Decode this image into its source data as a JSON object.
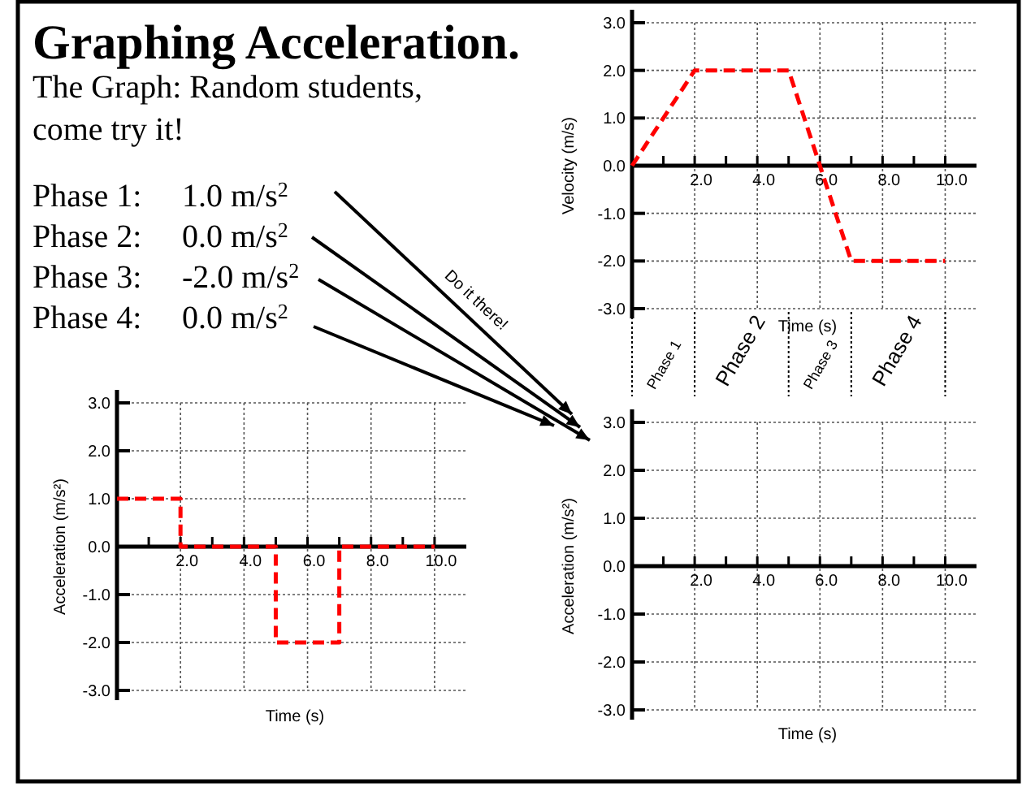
{
  "chart_data": [
    {
      "type": "other",
      "title": "Graphing Acceleration.",
      "subtitle": "The Graph: Random students, come try it!",
      "annotations": [
        "Phase 1: 1.0 m/s$^{2}$",
        "Phase 2: 0.0 m/s$^{2}$",
        "Phase 3: -2.0 m/s$^{2}$",
        "Phase 4: 0.0 m/s$^{2}$",
        "Do it there!"
      ]
    },
    {
      "type": "line",
      "ylabel": "Velocity (m/s)",
      "xlabel": "Time (s)",
      "annotations": [
        "Phase 1",
        "Phase 2",
        "Phase 3",
        "Phase 4"
      ],
      "xlim": [
        0,
        11
      ],
      "ylim": [
        -3,
        3
      ],
      "xticks": [
        {
          "value": 1,
          "label": null
        },
        {
          "value": 2,
          "label": "2.0"
        },
        {
          "value": 3,
          "label": null
        },
        {
          "value": 4,
          "label": "4.0"
        },
        {
          "value": 5,
          "label": null
        },
        {
          "value": 6,
          "label": "6.0"
        },
        {
          "value": 7,
          "label": null
        },
        {
          "value": 8,
          "label": "8.0"
        },
        {
          "value": 9,
          "label": null
        },
        {
          "value": 10,
          "label": "10.0"
        }
      ],
      "yticks": [
        {
          "value": -3,
          "label": "-3.0"
        },
        {
          "value": -2,
          "label": "-2.0"
        },
        {
          "value": -1,
          "label": "-1.0"
        },
        {
          "value": 0,
          "label": "0.0"
        },
        {
          "value": 1,
          "label": "1.0"
        },
        {
          "value": 2,
          "label": "2.0"
        },
        {
          "value": 3,
          "label": "3.0"
        }
      ],
      "grid": true,
      "line_style": "dashed",
      "marker": "none",
      "series": [
        {
          "color": "#ff0000",
          "x": [
            0,
            2,
            5,
            7,
            10
          ],
          "values": [
            0,
            2,
            2,
            -2,
            -2
          ]
        }
      ]
    },
    {
      "type": "step",
      "ylabel": "Acceleration (m/s²)",
      "xlabel": "Time (s)",
      "xlim": [
        0,
        11
      ],
      "ylim": [
        -3,
        3
      ],
      "xticks": [
        {
          "value": 1,
          "label": null
        },
        {
          "value": 2,
          "label": "2.0"
        },
        {
          "value": 3,
          "label": null
        },
        {
          "value": 4,
          "label": "4.0"
        },
        {
          "value": 5,
          "label": null
        },
        {
          "value": 6,
          "label": "6.0"
        },
        {
          "value": 7,
          "label": null
        },
        {
          "value": 8,
          "label": "8.0"
        },
        {
          "value": 9,
          "label": null
        },
        {
          "value": 10,
          "label": "10.0"
        }
      ],
      "yticks": [
        {
          "value": -3,
          "label": "-3.0"
        },
        {
          "value": -2,
          "label": "-2.0"
        },
        {
          "value": -1,
          "label": "-1.0"
        },
        {
          "value": 0,
          "label": "0.0"
        },
        {
          "value": 1,
          "label": "1.0"
        },
        {
          "value": 2,
          "label": "2.0"
        },
        {
          "value": 3,
          "label": "3.0"
        }
      ],
      "grid": true,
      "line_style": "dashed",
      "marker": "none",
      "series": [
        {
          "color": "#ff0000",
          "x": [
            0,
            2,
            5,
            7,
            10
          ],
          "values": [
            1,
            0,
            -2,
            0,
            0
          ]
        }
      ]
    },
    {
      "type": "line",
      "ylabel": "Acceleration (m/s²)",
      "xlabel": "Time (s)",
      "xlim": [
        0,
        11
      ],
      "ylim": [
        -3,
        3
      ],
      "xticks": [
        {
          "value": 1,
          "label": null
        },
        {
          "value": 2,
          "label": "2.0"
        },
        {
          "value": 3,
          "label": null
        },
        {
          "value": 4,
          "label": "4.0"
        },
        {
          "value": 5,
          "label": null
        },
        {
          "value": 6,
          "label": "6.0"
        },
        {
          "value": 7,
          "label": null
        },
        {
          "value": 8,
          "label": "8.0"
        },
        {
          "value": 9,
          "label": null
        },
        {
          "value": 10,
          "label": "10.0"
        }
      ],
      "yticks": [
        {
          "value": -3,
          "label": "-3.0"
        },
        {
          "value": -2,
          "label": "-2.0"
        },
        {
          "value": -1,
          "label": "-1.0"
        },
        {
          "value": 0,
          "label": "0.0"
        },
        {
          "value": 1,
          "label": "1.0"
        },
        {
          "value": 2,
          "label": "2.0"
        },
        {
          "value": 3,
          "label": "3.0"
        }
      ],
      "grid": true
    }
  ]
}
